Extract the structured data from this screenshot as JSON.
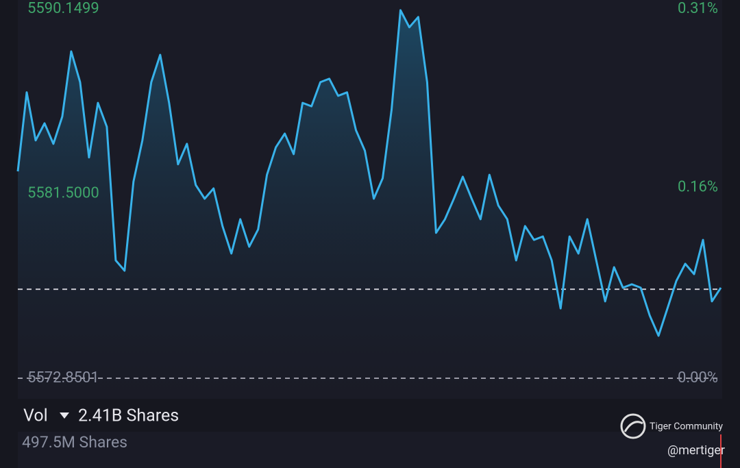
{
  "chart_data": {
    "type": "line",
    "values": [
      5582.54,
      5586.24,
      5583.99,
      5584.79,
      5583.83,
      5585.11,
      5588.16,
      5586.72,
      5583.19,
      5585.75,
      5584.63,
      5578.37,
      5577.89,
      5582.06,
      5583.99,
      5586.72,
      5588.0,
      5585.75,
      5582.87,
      5583.83,
      5581.9,
      5581.26,
      5581.74,
      5579.98,
      5578.69,
      5580.3,
      5579.01,
      5579.82,
      5582.38,
      5583.67,
      5584.31,
      5583.35,
      5585.75,
      5585.59,
      5586.72,
      5586.88,
      5586.08,
      5586.24,
      5584.47,
      5583.51,
      5581.26,
      5582.22,
      5585.43,
      5590.09,
      5589.29,
      5589.77,
      5586.72,
      5579.66,
      5580.3,
      5581.26,
      5582.29,
      5581.26,
      5580.3,
      5582.38,
      5580.94,
      5580.3,
      5578.37,
      5579.98,
      5579.33,
      5579.49,
      5578.37,
      5576.12,
      5579.49,
      5578.69,
      5580.3,
      5578.37,
      5576.45,
      5578.05,
      5577.09,
      5577.25,
      5577.09,
      5575.8,
      5574.84,
      5576.12,
      5577.41,
      5578.21,
      5577.73,
      5579.33,
      5576.45,
      5577.09
    ],
    "color": "#38b2ea",
    "ylim": [
      5572.8501,
      5590.1499
    ],
    "yticks": [
      5590.1499,
      {
        "value": 5581.5,
        "label": "5581.5000"
      },
      5572.8501
    ],
    "y2lim": [
      0,
      0.31
    ],
    "y2ticks": [
      {
        "value": 0.31,
        "label": "0.31%"
      },
      {
        "value": 0.16,
        "label": "0.16%"
      },
      {
        "value": 0,
        "label": "0.00%"
      }
    ],
    "reference_line": 5577.02,
    "grid": false
  },
  "volume_panel": {
    "label": "Vol",
    "total": "2.41B Shares",
    "scale_label": "497.5M Shares"
  },
  "watermark": {
    "brand": "Tiger Community",
    "user": "@mertiger"
  }
}
